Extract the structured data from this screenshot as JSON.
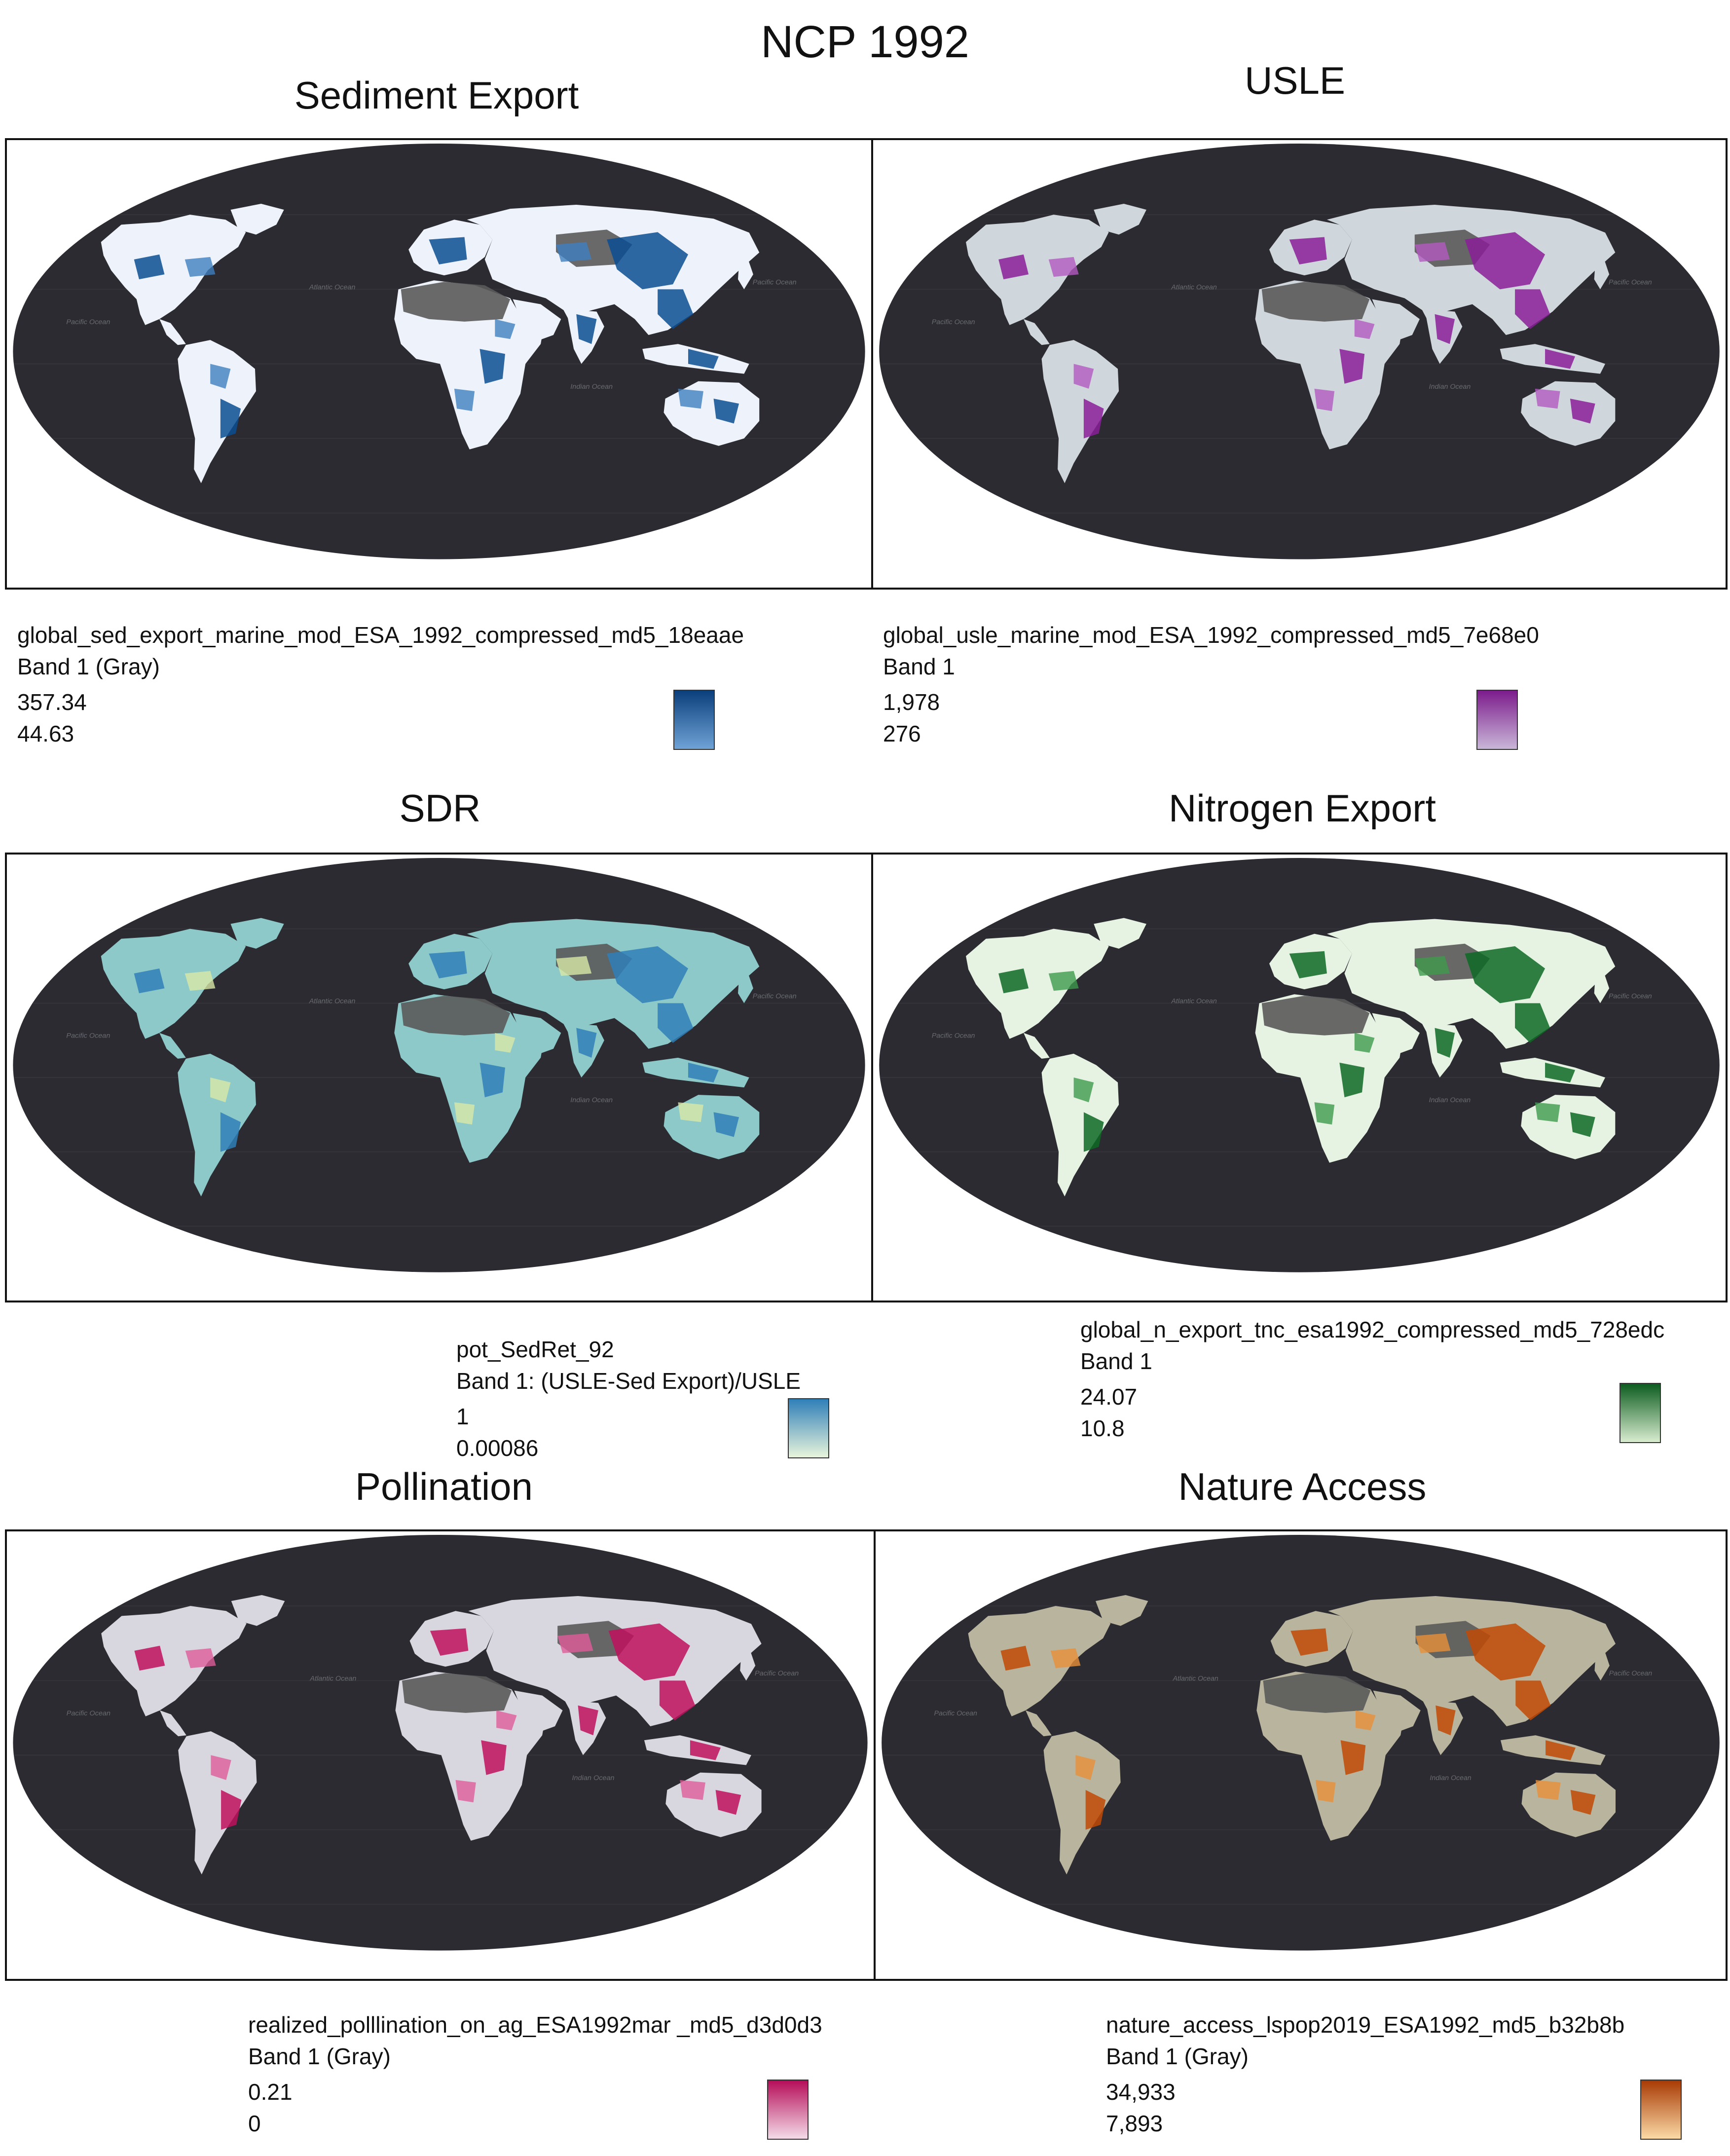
{
  "title": "NCP 1992",
  "ocean_labels": {
    "atlantic": "Atlantic Ocean",
    "pacific_east": "Pacific Ocean",
    "pacific_west": "Pacific Ocean",
    "indian": "Indian Ocean"
  },
  "panels": [
    {
      "id": "sediment",
      "title": "Sediment Export",
      "layer_name": "global_sed_export_marine_mod_ESA_1992_compressed_md5_18eaae",
      "band": "Band 1 (Gray)",
      "max": "357.34",
      "min": "44.63",
      "colors": {
        "land": "#eef3fb",
        "accent": "#0b4d92",
        "accent2": "#3f7fc0",
        "swatch_top": "#0a3f7c",
        "swatch_bottom": "#6fa3d6"
      }
    },
    {
      "id": "usle",
      "title": "USLE",
      "layer_name": "global_usle_marine_mod_ESA_1992_compressed_md5_7e68e0",
      "band": "Band 1",
      "max": "1,978",
      "min": "276",
      "colors": {
        "land": "#cfd6dc",
        "accent": "#8a1e98",
        "accent2": "#b35ac0",
        "swatch_top": "#7c1c8c",
        "swatch_bottom": "#c9b6d8"
      }
    },
    {
      "id": "sdr",
      "title": "SDR",
      "layer_name": "pot_SedRet_92",
      "band": "Band 1: (USLE-Sed Export)/USLE",
      "max": "1",
      "min": "0.00086",
      "colors": {
        "land": "#8cc9c8",
        "accent": "#2f7fb8",
        "accent2": "#d8e8a8",
        "swatch_top": "#2f7fb8",
        "swatch_bottom": "#e8f4dc"
      }
    },
    {
      "id": "nitrogen",
      "title": "Nitrogen Export",
      "layer_name": "global_n_export_tnc_esa1992_compressed_md5_728edc",
      "band": "Band 1",
      "max": "24.07",
      "min": "10.8",
      "colors": {
        "land": "#e6f2e2",
        "accent": "#0e6a24",
        "accent2": "#3f9a4c",
        "swatch_top": "#0c5c1f",
        "swatch_bottom": "#d8eccf"
      }
    },
    {
      "id": "pollination",
      "title": "Pollination",
      "layer_name": "realized_polllination_on_ag_ESA1992mar _md5_d3d0d3",
      "band": "Band 1 (Gray)",
      "max": "0.21",
      "min": "0",
      "colors": {
        "land": "#d8d6de",
        "accent": "#c0105e",
        "accent2": "#e05c9a",
        "swatch_top": "#b50d58",
        "swatch_bottom": "#f4dbe8"
      }
    },
    {
      "id": "nature",
      "title": "Nature Access",
      "layer_name": "nature_access_lspop2019_ESA1992_md5_b32b8b",
      "band": "Band 1 (Gray)",
      "max": "34,933",
      "min": "7,893",
      "colors": {
        "land": "#b9b49d",
        "accent": "#c04a06",
        "accent2": "#e8903a",
        "swatch_top": "#a83a04",
        "swatch_bottom": "#fbd9a6"
      }
    }
  ],
  "map_colors": {
    "background": "#2b2b31",
    "ocean": "#232327",
    "desert": "#5a5a5a",
    "graticule": "#34343a"
  }
}
